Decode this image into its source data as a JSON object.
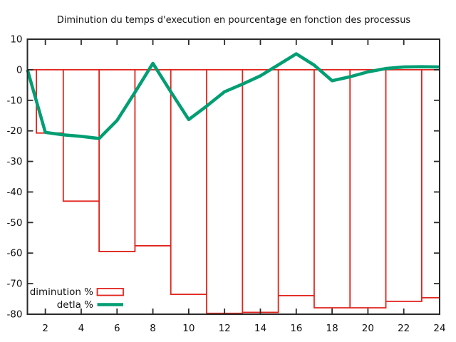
{
  "chart_data": {
    "type": "combo",
    "title": "Diminution du temps d'execution en pourcentage en fonction des processus",
    "xlabel": "",
    "ylabel": "",
    "xlim": [
      1,
      24
    ],
    "ylim": [
      -80,
      10
    ],
    "x_ticks": [
      2,
      4,
      6,
      8,
      10,
      12,
      14,
      16,
      18,
      20,
      22,
      24
    ],
    "y_ticks": [
      10,
      0,
      -10,
      -20,
      -30,
      -40,
      -50,
      -60,
      -70,
      -80
    ],
    "grid": false,
    "legend_position": "bottom-left",
    "series": [
      {
        "name": "diminution %",
        "type": "boxes",
        "color": "#e0231c",
        "baseline": 0,
        "box_half_width": 1,
        "first_left_edge": 1.5,
        "x": [
          2,
          4,
          6,
          8,
          10,
          12,
          14,
          16,
          18,
          20,
          22,
          24
        ],
        "values": [
          -20.7,
          -43.0,
          -59.5,
          -57.6,
          -73.5,
          -79.7,
          -79.4,
          -73.9,
          -77.9,
          -77.9,
          -75.8,
          -74.6
        ]
      },
      {
        "name": "detla %",
        "type": "line",
        "color": "#009e73",
        "x": [
          1,
          2,
          3,
          4,
          5,
          6,
          7,
          8,
          9,
          10,
          11,
          12,
          13,
          14,
          15,
          16,
          17,
          18,
          19,
          20,
          21,
          22,
          23,
          24
        ],
        "values": [
          0,
          -20.5,
          -21.3,
          -21.8,
          -22.5,
          -16.6,
          -7.4,
          2.1,
          -7.2,
          -16.3,
          -11.9,
          -7.2,
          -4.7,
          -2.0,
          1.6,
          5.2,
          1.5,
          -3.6,
          -2.3,
          -0.7,
          0.4,
          0.9,
          1.0,
          0.9
        ]
      }
    ],
    "axis_color": "#2a2a2a"
  }
}
